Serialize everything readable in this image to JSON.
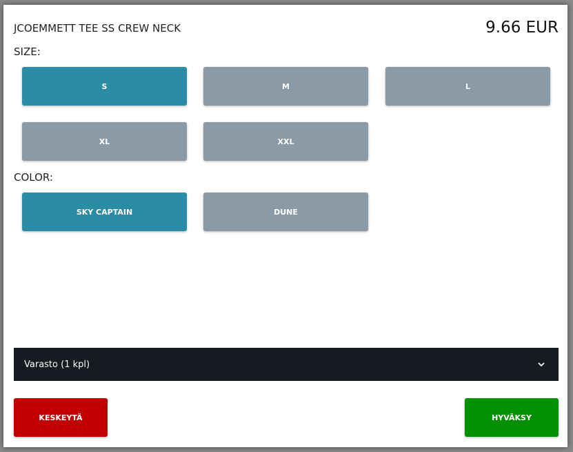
{
  "product": {
    "title": "JCOEMMETT TEE SS CREW NECK",
    "price": "9.66 EUR"
  },
  "size": {
    "label": "SIZE:",
    "options": [
      "S",
      "M",
      "L",
      "XL",
      "XXL"
    ],
    "selected": "S"
  },
  "color": {
    "label": "COLOR:",
    "options": [
      "SKY CAPTAIN",
      "DUNE"
    ],
    "selected": "SKY CAPTAIN"
  },
  "stock_dropdown": {
    "value": "Varasto (1 kpl)",
    "icon": "chevron-down-icon"
  },
  "actions": {
    "cancel_label": "KESKEYTÄ",
    "accept_label": "HYVÄKSY"
  },
  "colors": {
    "selected": "#2a8ca5",
    "unselected": "#8a9aa7",
    "cancel": "#c00000",
    "accept": "#009000",
    "dropdown": "#161a21"
  }
}
